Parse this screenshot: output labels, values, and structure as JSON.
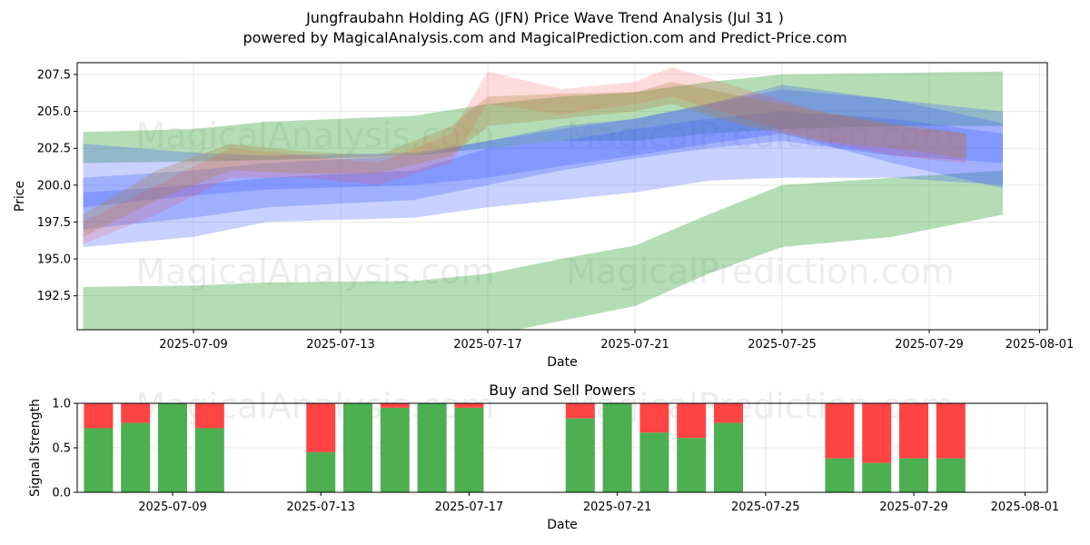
{
  "title_line1": "Jungfraubahn Holding AG (JFN) Price Wave Trend Analysis (Jul 31 )",
  "title_line2": "powered by MagicalAnalysis.com and MagicalPrediction.com and Predict-Price.com",
  "watermarks": [
    "MagicalAnalysis.com",
    "MagicalPrediction.com"
  ],
  "colors": {
    "green_band": "#4caf50",
    "blue_band": "#3b5bff",
    "red_band": "#ff3b3b",
    "buy": "#4caf50",
    "sell": "#ff4444"
  },
  "chart_data": [
    {
      "type": "area",
      "title": "",
      "xlabel": "Date",
      "ylabel": "Price",
      "x_ticks": [
        "2025-07-09",
        "2025-07-13",
        "2025-07-17",
        "2025-07-21",
        "2025-07-25",
        "2025-07-29",
        "2025-08-01"
      ],
      "y_ticks": [
        192.5,
        195.0,
        197.5,
        200.0,
        202.5,
        205.0,
        207.5
      ],
      "xlim": [
        "2025-07-05",
        "2025-08-01"
      ],
      "ylim": [
        190.2,
        208.3
      ],
      "grid": true,
      "series": [
        {
          "color": "#4caf50",
          "opacity": 0.42,
          "x": [
            "2025-07-06",
            "2025-07-09",
            "2025-07-11",
            "2025-07-15",
            "2025-07-17",
            "2025-07-19",
            "2025-07-21",
            "2025-07-23",
            "2025-07-25",
            "2025-07-28",
            "2025-07-31"
          ],
          "upper": [
            193.1,
            193.2,
            193.4,
            193.5,
            194.0,
            195.0,
            195.9,
            198.0,
            200.0,
            200.5,
            201.0
          ],
          "lower": [
            189.5,
            189.5,
            189.5,
            189.5,
            189.8,
            190.8,
            191.8,
            194.0,
            195.8,
            196.5,
            198.0
          ]
        },
        {
          "color": "#4caf50",
          "opacity": 0.42,
          "x": [
            "2025-07-06",
            "2025-07-09",
            "2025-07-11",
            "2025-07-15",
            "2025-07-17",
            "2025-07-19",
            "2025-07-21",
            "2025-07-23",
            "2025-07-25",
            "2025-07-28",
            "2025-07-31"
          ],
          "upper": [
            203.6,
            203.8,
            204.3,
            204.7,
            205.5,
            206.0,
            206.3,
            207.0,
            207.5,
            207.6,
            207.7
          ],
          "lower": [
            201.5,
            201.6,
            201.7,
            202.0,
            202.5,
            203.0,
            203.0,
            203.5,
            203.8,
            204.0,
            204.0
          ]
        },
        {
          "color": "#3b5bff",
          "opacity": 0.28,
          "x": [
            "2025-07-06",
            "2025-07-09",
            "2025-07-11",
            "2025-07-15",
            "2025-07-17",
            "2025-07-19",
            "2025-07-21",
            "2025-07-23",
            "2025-07-25",
            "2025-07-28",
            "2025-07-31"
          ],
          "upper": [
            199.5,
            200.0,
            200.5,
            201.0,
            202.5,
            203.0,
            203.8,
            204.5,
            205.0,
            204.5,
            203.5
          ],
          "lower": [
            195.8,
            196.5,
            197.5,
            197.8,
            198.5,
            199.0,
            199.5,
            200.3,
            200.5,
            200.5,
            200.0
          ]
        },
        {
          "color": "#3b5bff",
          "opacity": 0.28,
          "x": [
            "2025-07-06",
            "2025-07-09",
            "2025-07-11",
            "2025-07-15",
            "2025-07-17",
            "2025-07-19",
            "2025-07-21",
            "2025-07-23",
            "2025-07-25",
            "2025-07-28",
            "2025-07-31"
          ],
          "upper": [
            200.5,
            201.0,
            201.5,
            202.0,
            203.0,
            204.0,
            204.5,
            205.5,
            206.5,
            205.8,
            205.0
          ],
          "lower": [
            197.0,
            197.8,
            198.5,
            199.0,
            200.0,
            201.0,
            201.8,
            202.5,
            203.0,
            202.0,
            201.5
          ]
        },
        {
          "color": "#3b5bff",
          "opacity": 0.28,
          "x": [
            "2025-07-06",
            "2025-07-09",
            "2025-07-11",
            "2025-07-15",
            "2025-07-17",
            "2025-07-19",
            "2025-07-21",
            "2025-07-23",
            "2025-07-25",
            "2025-07-28",
            "2025-07-31"
          ],
          "upper": [
            202.8,
            202.2,
            202.0,
            202.2,
            203.0,
            203.8,
            204.5,
            205.5,
            206.8,
            205.8,
            204.2
          ],
          "lower": [
            198.5,
            199.3,
            199.7,
            200.0,
            200.5,
            201.3,
            202.0,
            202.8,
            203.5,
            201.5,
            199.8
          ]
        },
        {
          "color": "#ff3b3b",
          "opacity": 0.18,
          "x": [
            "2025-07-06",
            "2025-07-08",
            "2025-07-10",
            "2025-07-12",
            "2025-07-14",
            "2025-07-16",
            "2025-07-17",
            "2025-07-19",
            "2025-07-21",
            "2025-07-22",
            "2025-07-24",
            "2025-07-26",
            "2025-07-28",
            "2025-07-30"
          ],
          "upper": [
            197.5,
            200.0,
            202.5,
            202.0,
            201.5,
            203.5,
            207.7,
            206.5,
            207.0,
            208.0,
            206.5,
            205.0,
            204.0,
            203.5
          ],
          "lower": [
            196.0,
            198.0,
            200.5,
            200.5,
            200.0,
            201.5,
            205.5,
            204.8,
            205.5,
            206.0,
            204.5,
            203.0,
            202.0,
            201.5
          ]
        },
        {
          "color": "#b08040",
          "opacity": 0.3,
          "x": [
            "2025-07-06",
            "2025-07-08",
            "2025-07-10",
            "2025-07-12",
            "2025-07-14",
            "2025-07-16",
            "2025-07-17",
            "2025-07-19",
            "2025-07-21",
            "2025-07-22",
            "2025-07-24",
            "2025-07-26",
            "2025-07-28",
            "2025-07-30"
          ],
          "upper": [
            198.0,
            201.0,
            202.8,
            202.3,
            202.0,
            204.0,
            206.0,
            206.2,
            206.3,
            207.0,
            206.0,
            205.0,
            204.2,
            203.5
          ],
          "lower": [
            196.5,
            199.0,
            201.0,
            200.8,
            200.8,
            202.0,
            204.0,
            204.5,
            205.0,
            205.5,
            204.0,
            203.0,
            202.5,
            201.8
          ]
        }
      ]
    },
    {
      "type": "bar",
      "title": "Buy and Sell Powers",
      "xlabel": "Date",
      "ylabel": "Signal Strength",
      "x_ticks": [
        "2025-07-09",
        "2025-07-13",
        "2025-07-17",
        "2025-07-21",
        "2025-07-25",
        "2025-07-29",
        "2025-08-01"
      ],
      "y_ticks": [
        0.0,
        0.5,
        1.0
      ],
      "ylim": [
        0,
        1
      ],
      "grid": true,
      "categories": [
        "2025-07-07",
        "2025-07-08",
        "2025-07-09",
        "2025-07-10",
        "2025-07-13",
        "2025-07-14",
        "2025-07-15",
        "2025-07-16",
        "2025-07-17",
        "2025-07-20",
        "2025-07-21",
        "2025-07-22",
        "2025-07-23",
        "2025-07-24",
        "2025-07-27",
        "2025-07-28",
        "2025-07-29",
        "2025-07-30"
      ],
      "buy": [
        0.72,
        0.78,
        1.0,
        0.72,
        0.45,
        1.0,
        0.95,
        1.0,
        0.95,
        0.83,
        1.0,
        0.67,
        0.61,
        0.78,
        0.38,
        0.33,
        0.38,
        0.38
      ]
    }
  ]
}
